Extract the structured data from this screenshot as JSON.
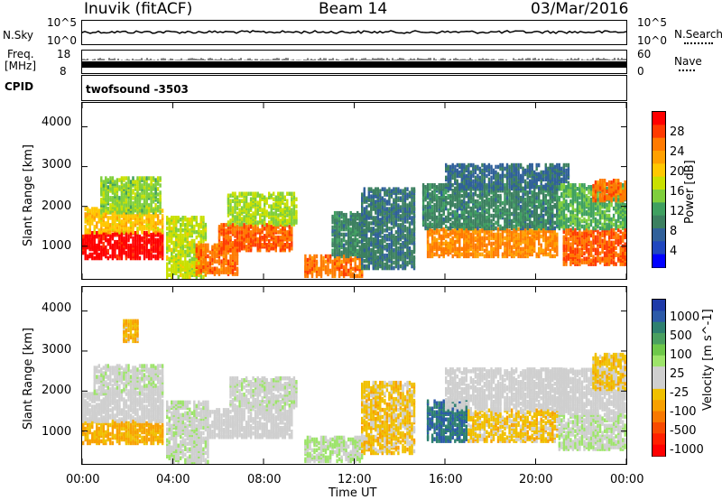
{
  "header": {
    "left": "Inuvik (fitACF)",
    "center": "Beam 14",
    "right": "03/Mar/2016"
  },
  "panels": {
    "nsky": {
      "label": "N.Sky",
      "ticks_left": [
        "10^5",
        "10^0"
      ],
      "right_label": "N.Search",
      "ticks_right": [
        "10^5",
        "10^0"
      ]
    },
    "freq": {
      "label_top": "Freq.",
      "label_mid": "[MHz]",
      "ticks_left": [
        "18",
        "8"
      ],
      "right_label": "Nave",
      "ticks_right": [
        "60",
        "0"
      ]
    },
    "cpid": {
      "label": "CPID",
      "text": "twofsound  -3503"
    }
  },
  "axes": {
    "ylabel": "Slant Range [km]",
    "xlabel": "Time UT",
    "yticks": [
      "4000",
      "3000",
      "2000",
      "1000"
    ],
    "xticks": [
      "00:00",
      "04:00",
      "08:00",
      "12:00",
      "16:00",
      "20:00",
      "00:00"
    ]
  },
  "colorbars": {
    "power": {
      "label": "Power [dB]",
      "ticks": [
        "28",
        "24",
        "20",
        "16",
        "12",
        "8",
        "4"
      ],
      "colors": [
        "#ff0000",
        "#ff3a00",
        "#ff7a00",
        "#ffa000",
        "#ffc800",
        "#c9e000",
        "#7fcf3c",
        "#3fa060",
        "#3c8060",
        "#30609a",
        "#1f46bf",
        "#0000ff"
      ]
    },
    "velocity": {
      "label": "Velocity [m s^-1]",
      "ticks": [
        "1000",
        "500",
        "100",
        "25",
        "-25",
        "-100",
        "-500",
        "-1000"
      ],
      "colors": [
        "#1e3aa8",
        "#2c5aa8",
        "#2e8070",
        "#4aa060",
        "#6ec84a",
        "#9de46a",
        "#cfcfcf",
        "#cfcfcf",
        "#f0c000",
        "#f8a000",
        "#f87800",
        "#f84a00",
        "#ff2000",
        "#ff0000"
      ]
    }
  },
  "chart_data": [
    {
      "type": "heatmap",
      "title": "Power [dB]",
      "xlabel": "Time UT",
      "ylabel": "Slant Range [km]",
      "xlim": [
        0,
        24
      ],
      "ylim": [
        180,
        4600
      ],
      "clim": [
        0,
        30
      ],
      "blobs": [
        {
          "t0": 0.0,
          "t1": 3.6,
          "r0": 650,
          "r1": 1300,
          "v": 29
        },
        {
          "t0": 0.1,
          "t1": 3.6,
          "r0": 1300,
          "r1": 1900,
          "v": 19
        },
        {
          "t0": 0.8,
          "t1": 3.5,
          "r0": 1800,
          "r1": 2700,
          "v": 14
        },
        {
          "t0": 3.7,
          "t1": 5.4,
          "r0": 180,
          "r1": 1700,
          "v": 16
        },
        {
          "t0": 5.0,
          "t1": 6.8,
          "r0": 250,
          "r1": 1000,
          "v": 24
        },
        {
          "t0": 6.0,
          "t1": 9.2,
          "r0": 850,
          "r1": 1500,
          "v": 25
        },
        {
          "t0": 6.4,
          "t1": 9.4,
          "r0": 1500,
          "r1": 2300,
          "v": 15
        },
        {
          "t0": 9.8,
          "t1": 12.3,
          "r0": 200,
          "r1": 700,
          "v": 24
        },
        {
          "t0": 11.0,
          "t1": 12.5,
          "r0": 700,
          "r1": 1800,
          "v": 9
        },
        {
          "t0": 12.3,
          "t1": 14.6,
          "r0": 400,
          "r1": 2400,
          "v": 8
        },
        {
          "t0": 15.2,
          "t1": 21.0,
          "r0": 700,
          "r1": 1400,
          "v": 23
        },
        {
          "t0": 15.0,
          "t1": 21.0,
          "r0": 1400,
          "r1": 2500,
          "v": 9
        },
        {
          "t0": 16.0,
          "t1": 21.5,
          "r0": 2400,
          "r1": 3000,
          "v": 7
        },
        {
          "t0": 21.2,
          "t1": 24.0,
          "r0": 500,
          "r1": 1400,
          "v": 25
        },
        {
          "t0": 21.0,
          "t1": 24.0,
          "r0": 1400,
          "r1": 2500,
          "v": 12
        },
        {
          "t0": 22.5,
          "t1": 24.0,
          "r0": 2100,
          "r1": 2600,
          "v": 24
        }
      ]
    },
    {
      "type": "heatmap",
      "title": "Velocity [m s^-1]",
      "xlabel": "Time UT",
      "ylabel": "Slant Range [km]",
      "xlim": [
        0,
        24
      ],
      "ylim": [
        180,
        4600
      ],
      "clim": [
        -1000,
        1000
      ],
      "blobs": [
        {
          "t0": 0.0,
          "t1": 3.6,
          "r0": 650,
          "r1": 1200,
          "v": -300
        },
        {
          "t0": 0.0,
          "t1": 3.6,
          "r0": 1200,
          "r1": 1900,
          "v": 0
        },
        {
          "t0": 0.5,
          "t1": 3.6,
          "r0": 1900,
          "r1": 2600,
          "v": 60
        },
        {
          "t0": 3.7,
          "t1": 5.5,
          "r0": 180,
          "r1": 1700,
          "v": 80
        },
        {
          "t0": 5.5,
          "t1": 9.2,
          "r0": 800,
          "r1": 1500,
          "v": 0
        },
        {
          "t0": 6.5,
          "t1": 9.4,
          "r0": 1500,
          "r1": 2300,
          "v": 70
        },
        {
          "t0": 9.8,
          "t1": 12.3,
          "r0": 200,
          "r1": 800,
          "v": 150
        },
        {
          "t0": 12.3,
          "t1": 14.6,
          "r0": 400,
          "r1": 2200,
          "v": -200
        },
        {
          "t0": 15.2,
          "t1": 17.0,
          "r0": 700,
          "r1": 1700,
          "v": 700
        },
        {
          "t0": 17.0,
          "t1": 21.0,
          "r0": 700,
          "r1": 1500,
          "v": -200
        },
        {
          "t0": 16.0,
          "t1": 21.5,
          "r0": 1500,
          "r1": 2500,
          "v": 0
        },
        {
          "t0": 21.0,
          "t1": 24.0,
          "r0": 500,
          "r1": 1400,
          "v": 100
        },
        {
          "t0": 21.0,
          "t1": 24.0,
          "r0": 1400,
          "r1": 2500,
          "v": 0
        },
        {
          "t0": 22.5,
          "t1": 24.0,
          "r0": 2000,
          "r1": 2900,
          "v": -200
        },
        {
          "t0": 1.8,
          "t1": 2.5,
          "r0": 3200,
          "r1": 3700,
          "v": -250
        }
      ]
    }
  ]
}
